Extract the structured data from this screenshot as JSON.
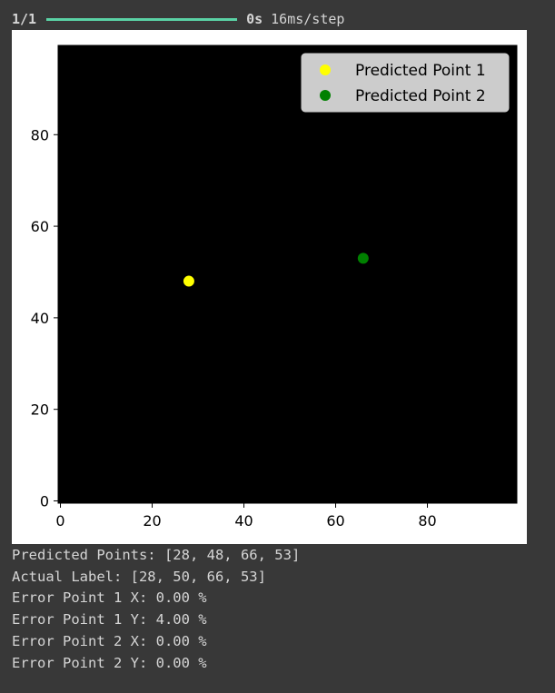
{
  "progress": {
    "count": "1/1",
    "fraction": 1.0,
    "elapsed": "0s",
    "rate": "16ms/step",
    "bar_color": "#5ad2a5"
  },
  "chart_data": {
    "type": "scatter",
    "image": {
      "background": "#000000",
      "width": 100,
      "height": 100
    },
    "blobs": [
      {
        "cx": 28,
        "cy": 50,
        "color": "#ff0000"
      },
      {
        "cx": 66,
        "cy": 53,
        "color": "#0000ff"
      }
    ],
    "series": [
      {
        "name": "Predicted Point 1",
        "color": "#ffff00",
        "x": [
          28
        ],
        "y": [
          48
        ]
      },
      {
        "name": "Predicted Point 2",
        "color": "#008000",
        "x": [
          66
        ],
        "y": [
          53
        ]
      }
    ],
    "xticks": [
      0,
      20,
      40,
      60,
      80
    ],
    "yticks": [
      0,
      20,
      40,
      60,
      80
    ],
    "xlim": [
      -0.5,
      99.5
    ],
    "ylim": [
      99.5,
      -0.5
    ],
    "legend_position": "top-right",
    "title": "",
    "xlabel": "",
    "ylabel": ""
  },
  "output_lines": [
    "Predicted Points: [28, 48, 66, 53]",
    "Actual Label: [28, 50, 66, 53]",
    "Error Point 1 X: 0.00 %",
    "Error Point 1 Y: 4.00 %",
    "Error Point 2 X: 0.00 %",
    "Error Point 2 Y: 0.00 %"
  ]
}
